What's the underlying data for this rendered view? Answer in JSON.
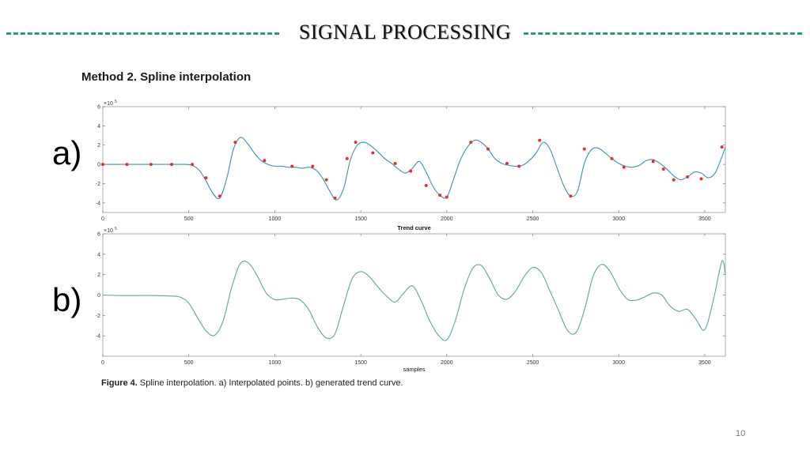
{
  "slide": {
    "title": "SIGNAL PROCESSING",
    "subtitle": "Method 2. Spline interpolation",
    "caption_label": "Figure 4.",
    "caption_text": " Spline interpolation. a) Interpolated points. b) generated trend curve.",
    "page_number": "10"
  },
  "colors": {
    "accent": "#2e9a6b",
    "signal": "#3d8fb5",
    "trend": "#5aa6a3",
    "marker": "#e23030"
  },
  "chart_data": [
    {
      "type": "line",
      "panel_label": "a)",
      "xlabel": "Trend curve",
      "ylabel": "",
      "exponent_label": "×10",
      "exponent_power": "5",
      "xlim": [
        0,
        3620
      ],
      "ylim": [
        -5,
        6
      ],
      "xticks": [
        0,
        500,
        1000,
        1500,
        2000,
        2500,
        3000,
        3500
      ],
      "yticks": [
        -4,
        -2,
        0,
        2,
        4,
        6
      ],
      "grid": false,
      "series": [
        {
          "style": "line",
          "x": [
            0,
            40,
            80,
            120,
            160,
            200,
            240,
            280,
            320,
            360,
            400,
            440,
            480,
            520,
            560,
            600,
            640,
            680,
            720,
            760,
            800,
            840,
            880,
            920,
            960,
            1000,
            1040,
            1080,
            1120,
            1160,
            1200,
            1240,
            1280,
            1320,
            1360,
            1400,
            1440,
            1480,
            1520,
            1560,
            1600,
            1640,
            1680,
            1720,
            1760,
            1800,
            1840,
            1880,
            1920,
            1960,
            2000,
            2040,
            2080,
            2120,
            2160,
            2200,
            2240,
            2280,
            2320,
            2360,
            2400,
            2440,
            2480,
            2520,
            2560,
            2600,
            2640,
            2680,
            2720,
            2760,
            2800,
            2840,
            2880,
            2920,
            2960,
            3000,
            3040,
            3080,
            3120,
            3160,
            3200,
            3240,
            3280,
            3320,
            3360,
            3400,
            3440,
            3480,
            3520,
            3560,
            3600,
            3620
          ],
          "y": [
            0.0,
            0.0,
            0.0,
            0.0,
            0.0,
            0.0,
            0.0,
            0.0,
            0.0,
            0.0,
            0.0,
            0.0,
            0.0,
            -0.1,
            -0.6,
            -1.7,
            -3.0,
            -3.5,
            -1.5,
            1.6,
            2.8,
            2.2,
            1.2,
            0.4,
            0.0,
            -0.2,
            -0.2,
            -0.3,
            -0.3,
            -0.4,
            -0.3,
            -0.6,
            -1.5,
            -2.8,
            -3.7,
            -2.5,
            0.5,
            2.0,
            2.3,
            1.9,
            1.3,
            0.6,
            0.1,
            -0.5,
            -0.9,
            -0.4,
            0.3,
            -0.8,
            -2.3,
            -3.2,
            -3.4,
            -1.5,
            0.5,
            1.8,
            2.5,
            2.3,
            1.6,
            0.6,
            0.1,
            -0.1,
            -0.2,
            -0.1,
            0.4,
            1.2,
            2.3,
            1.6,
            -0.3,
            -2.2,
            -3.3,
            -2.8,
            0.1,
            1.5,
            1.7,
            1.2,
            0.6,
            0.1,
            -0.2,
            -0.3,
            -0.1,
            0.4,
            0.5,
            0.1,
            -0.5,
            -1.2,
            -1.6,
            -1.3,
            -0.8,
            -0.9,
            -1.4,
            -0.9,
            0.8,
            1.8
          ]
        },
        {
          "style": "markers",
          "x": [
            0,
            140,
            280,
            400,
            520,
            600,
            680,
            770,
            940,
            1100,
            1220,
            1300,
            1350,
            1420,
            1470,
            1570,
            1700,
            1790,
            1880,
            1960,
            2000,
            2140,
            2240,
            2350,
            2420,
            2540,
            2720,
            2800,
            2960,
            3030,
            3200,
            3260,
            3320,
            3400,
            3480,
            3600
          ],
          "y": [
            0.0,
            0.0,
            0.0,
            0.0,
            0.0,
            -1.4,
            -3.3,
            2.3,
            0.4,
            -0.2,
            -0.2,
            -1.6,
            -3.5,
            0.6,
            2.3,
            1.2,
            0.1,
            -0.7,
            -2.2,
            -3.2,
            -3.4,
            2.3,
            1.6,
            0.1,
            -0.2,
            2.5,
            -3.3,
            1.6,
            0.6,
            -0.3,
            0.3,
            -0.5,
            -1.6,
            -1.3,
            -1.5,
            1.8
          ]
        }
      ]
    },
    {
      "type": "line",
      "panel_label": "b)",
      "xlabel": "samples",
      "ylabel": "",
      "exponent_label": "×10",
      "exponent_power": "5",
      "xlim": [
        0,
        3620
      ],
      "ylim": [
        -6,
        6
      ],
      "xticks": [
        0,
        500,
        1000,
        1500,
        2000,
        2500,
        3000,
        3500
      ],
      "yticks": [
        -4,
        -2,
        0,
        2,
        4,
        6
      ],
      "grid": false,
      "series": [
        {
          "style": "line",
          "x": [
            0,
            100,
            200,
            300,
            400,
            450,
            500,
            550,
            600,
            650,
            700,
            750,
            800,
            850,
            900,
            950,
            1000,
            1050,
            1100,
            1150,
            1200,
            1250,
            1300,
            1350,
            1400,
            1450,
            1500,
            1550,
            1600,
            1650,
            1700,
            1750,
            1800,
            1850,
            1900,
            1950,
            2000,
            2050,
            2100,
            2150,
            2200,
            2250,
            2300,
            2350,
            2400,
            2450,
            2500,
            2550,
            2600,
            2650,
            2700,
            2750,
            2800,
            2850,
            2900,
            2950,
            3000,
            3050,
            3100,
            3150,
            3200,
            3250,
            3300,
            3350,
            3400,
            3450,
            3500,
            3550,
            3600,
            3620
          ],
          "y": [
            0.0,
            -0.05,
            -0.05,
            -0.05,
            -0.1,
            -0.2,
            -0.8,
            -2.2,
            -3.5,
            -3.95,
            -2.5,
            0.8,
            3.1,
            3.1,
            1.8,
            0.2,
            -0.45,
            -0.4,
            -0.3,
            -0.5,
            -1.5,
            -3.2,
            -4.2,
            -3.8,
            -1.0,
            1.6,
            2.3,
            1.8,
            0.8,
            -0.1,
            -0.7,
            0.2,
            0.9,
            -0.5,
            -2.5,
            -3.9,
            -4.4,
            -2.5,
            0.5,
            2.6,
            2.9,
            1.6,
            0.0,
            -0.4,
            0.4,
            1.8,
            2.7,
            2.2,
            0.4,
            -1.5,
            -3.4,
            -3.7,
            -1.5,
            1.8,
            3.0,
            2.3,
            0.7,
            -0.4,
            -0.5,
            -0.2,
            0.2,
            0.0,
            -1.1,
            -1.6,
            -1.4,
            -2.4,
            -3.4,
            -0.5,
            3.3,
            2.0
          ]
        }
      ]
    }
  ]
}
